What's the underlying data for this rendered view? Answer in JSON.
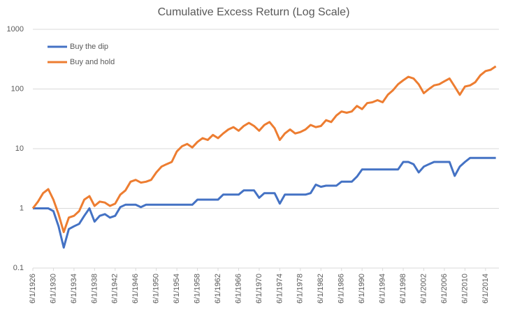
{
  "chart_data": {
    "type": "line",
    "title": "Cumulative Excess Return (Log Scale)",
    "x": [
      1926,
      1927,
      1928,
      1929,
      1930,
      1931,
      1932,
      1933,
      1934,
      1935,
      1936,
      1937,
      1938,
      1939,
      1940,
      1941,
      1942,
      1943,
      1944,
      1945,
      1946,
      1947,
      1948,
      1949,
      1950,
      1951,
      1952,
      1953,
      1954,
      1955,
      1956,
      1957,
      1958,
      1959,
      1960,
      1961,
      1962,
      1963,
      1964,
      1965,
      1966,
      1967,
      1968,
      1969,
      1970,
      1971,
      1972,
      1973,
      1974,
      1975,
      1976,
      1977,
      1978,
      1979,
      1980,
      1981,
      1982,
      1983,
      1984,
      1985,
      1986,
      1987,
      1988,
      1989,
      1990,
      1991,
      1992,
      1993,
      1994,
      1995,
      1996,
      1997,
      1998,
      1999,
      2000,
      2001,
      2002,
      2003,
      2004,
      2005,
      2006,
      2007,
      2008,
      2009,
      2010,
      2011,
      2012,
      2013,
      2014,
      2015,
      2016
    ],
    "series": [
      {
        "name": "Buy the dip",
        "color": "#4472c4",
        "values": [
          1,
          1,
          1,
          1,
          0.9,
          0.5,
          0.22,
          0.45,
          0.5,
          0.55,
          0.75,
          1.0,
          0.6,
          0.75,
          0.8,
          0.7,
          0.75,
          1.05,
          1.15,
          1.15,
          1.15,
          1.05,
          1.15,
          1.15,
          1.15,
          1.15,
          1.15,
          1.15,
          1.15,
          1.15,
          1.15,
          1.15,
          1.4,
          1.4,
          1.4,
          1.4,
          1.4,
          1.7,
          1.7,
          1.7,
          1.7,
          2.0,
          2.0,
          2.0,
          1.5,
          1.8,
          1.8,
          1.8,
          1.2,
          1.7,
          1.7,
          1.7,
          1.7,
          1.7,
          1.8,
          2.5,
          2.3,
          2.4,
          2.4,
          2.4,
          2.8,
          2.8,
          2.8,
          3.4,
          4.5,
          4.5,
          4.5,
          4.5,
          4.5,
          4.5,
          4.5,
          4.5,
          6.0,
          6.0,
          5.5,
          4.0,
          5.0,
          5.5,
          6.0,
          6.0,
          6.0,
          6.0,
          3.5,
          5.0,
          6.0,
          7.0,
          7,
          7,
          7,
          7,
          7
        ]
      },
      {
        "name": "Buy and hold",
        "color": "#ed7d31",
        "values": [
          1.0,
          1.3,
          1.8,
          2.1,
          1.4,
          0.8,
          0.4,
          0.7,
          0.75,
          0.9,
          1.4,
          1.6,
          1.1,
          1.3,
          1.25,
          1.1,
          1.2,
          1.7,
          2.0,
          2.8,
          3.0,
          2.7,
          2.8,
          3.0,
          4.0,
          5.0,
          5.5,
          6.0,
          9.0,
          11,
          12,
          10.5,
          13,
          15,
          14,
          17,
          15,
          18,
          21,
          23,
          20,
          24,
          27,
          24,
          20,
          25,
          28,
          22,
          14,
          18,
          21,
          18,
          19,
          21,
          25,
          23,
          24,
          30,
          28,
          36,
          42,
          40,
          42,
          52,
          46,
          58,
          60,
          65,
          60,
          80,
          95,
          120,
          140,
          160,
          150,
          120,
          85,
          100,
          115,
          120,
          135,
          150,
          110,
          80,
          110,
          115,
          130,
          170,
          200,
          210,
          240
        ]
      }
    ],
    "xlim": [
      1926,
      2016.6
    ],
    "xticks": [
      {
        "value": 1926,
        "label": "6/1/1926"
      },
      {
        "value": 1930,
        "label": "6/1/1930"
      },
      {
        "value": 1934,
        "label": "6/1/1934"
      },
      {
        "value": 1938,
        "label": "6/1/1938"
      },
      {
        "value": 1942,
        "label": "6/1/1942"
      },
      {
        "value": 1946,
        "label": "6/1/1946"
      },
      {
        "value": 1950,
        "label": "6/1/1950"
      },
      {
        "value": 1954,
        "label": "6/1/1954"
      },
      {
        "value": 1958,
        "label": "6/1/1958"
      },
      {
        "value": 1962,
        "label": "6/1/1962"
      },
      {
        "value": 1966,
        "label": "6/1/1966"
      },
      {
        "value": 1970,
        "label": "6/1/1970"
      },
      {
        "value": 1974,
        "label": "6/1/1974"
      },
      {
        "value": 1978,
        "label": "6/1/1978"
      },
      {
        "value": 1982,
        "label": "6/1/1982"
      },
      {
        "value": 1986,
        "label": "6/1/1986"
      },
      {
        "value": 1990,
        "label": "6/1/1990"
      },
      {
        "value": 1994,
        "label": "6/1/1994"
      },
      {
        "value": 1998,
        "label": "6/1/1998"
      },
      {
        "value": 2002,
        "label": "6/1/2002"
      },
      {
        "value": 2006,
        "label": "6/1/2006"
      },
      {
        "value": 2010,
        "label": "6/1/2010"
      },
      {
        "value": 2014,
        "label": "6/1/2014"
      }
    ],
    "ylim": [
      0.1,
      1000
    ],
    "yticks": [
      0.1,
      1,
      10,
      100,
      1000
    ],
    "log_scale": true,
    "grid": true,
    "legend": "upper left"
  }
}
